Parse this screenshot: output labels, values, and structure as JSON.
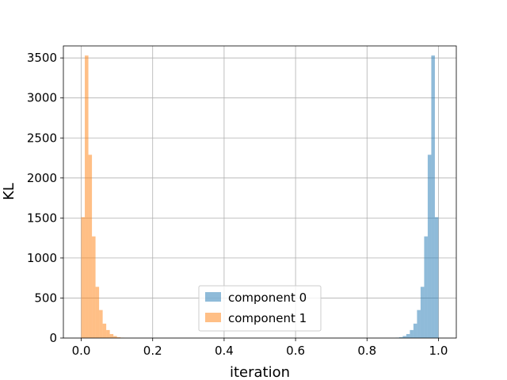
{
  "chart_data": {
    "type": "bar",
    "xlabel": "iteration",
    "ylabel": "KL",
    "xlim": [
      -0.05,
      1.05
    ],
    "ylim": [
      0,
      3650
    ],
    "xticks": [
      0.0,
      0.2,
      0.4,
      0.6,
      0.8,
      1.0
    ],
    "xtick_labels": [
      "0.0",
      "0.2",
      "0.4",
      "0.6",
      "0.8",
      "1.0"
    ],
    "yticks": [
      0,
      500,
      1000,
      1500,
      2000,
      2500,
      3000,
      3500
    ],
    "ytick_labels": [
      "0",
      "500",
      "1000",
      "1500",
      "2000",
      "2500",
      "3000",
      "3500"
    ],
    "grid": true,
    "legend_position": "bottom-center",
    "bin_width": 0.01,
    "series": [
      {
        "name": "component 0",
        "color": "#1f77b4",
        "alpha": 0.5,
        "bin_starts": [
          0.88,
          0.89,
          0.9,
          0.91,
          0.92,
          0.93,
          0.94,
          0.95,
          0.96,
          0.97,
          0.98,
          0.99
        ],
        "values": [
          5,
          10,
          25,
          50,
          100,
          180,
          350,
          640,
          1270,
          2290,
          3530,
          1510
        ]
      },
      {
        "name": "component 1",
        "color": "#ff7f0e",
        "alpha": 0.5,
        "bin_starts": [
          0.0,
          0.01,
          0.02,
          0.03,
          0.04,
          0.05,
          0.06,
          0.07,
          0.08,
          0.09,
          0.1,
          0.11
        ],
        "values": [
          1510,
          3530,
          2290,
          1270,
          640,
          350,
          180,
          100,
          50,
          25,
          10,
          5
        ]
      }
    ]
  }
}
